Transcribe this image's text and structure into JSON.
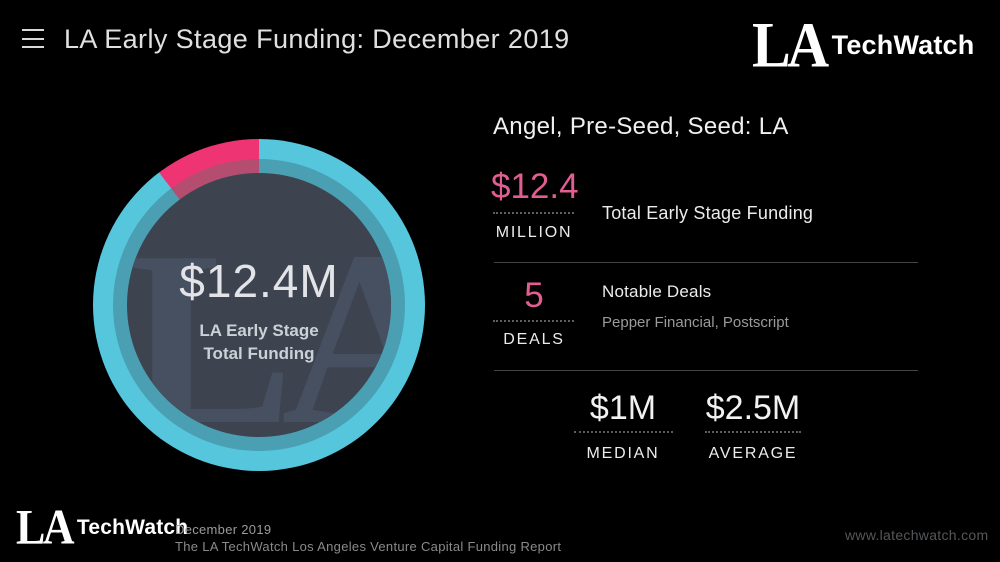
{
  "colors": {
    "background": "#000000",
    "accent_pink": "#e25d90",
    "divider": "#444444",
    "inner_circle": "#3d4450",
    "watermark": "#475060"
  },
  "header": {
    "title": "LA Early Stage Funding: December 2019",
    "logo": {
      "mark": "LA",
      "name": "TechWatch"
    }
  },
  "chart_data": {
    "type": "pie",
    "donut": true,
    "title": "LA Early Stage Total Funding",
    "center_value": "$12.4M",
    "center_label_1": "LA Early Stage",
    "center_label_2": "Total Funding",
    "watermark": "LA",
    "start_angle_deg": -37,
    "slices": [
      {
        "label": "highlighted share",
        "percent": 10.3,
        "color": "#ee3472",
        "shade_color": "#b44d70"
      },
      {
        "label": "remainder",
        "percent": 89.7,
        "color": "#55c6dc",
        "shade_color": "#4b9fb3"
      }
    ],
    "legend": "none"
  },
  "panel": {
    "heading": "Angel, Pre-Seed, Seed: LA",
    "stats": [
      {
        "value": "$12.4",
        "unit": "MILLION",
        "label": "Total Early Stage Funding"
      },
      {
        "value": "5",
        "unit": "DEALS",
        "label": "Notable Deals",
        "sublabel": "Pepper Financial, Postscript"
      }
    ],
    "bottom_stats": [
      {
        "value": "$1M",
        "label": "MEDIAN"
      },
      {
        "value": "$2.5M",
        "label": "AVERAGE"
      }
    ]
  },
  "footer": {
    "logo": {
      "mark": "LA",
      "name": "TechWatch"
    },
    "date": "December 2019",
    "report": "The LA TechWatch Los Angeles Venture Capital Funding Report",
    "website": "www.latechwatch.com"
  }
}
